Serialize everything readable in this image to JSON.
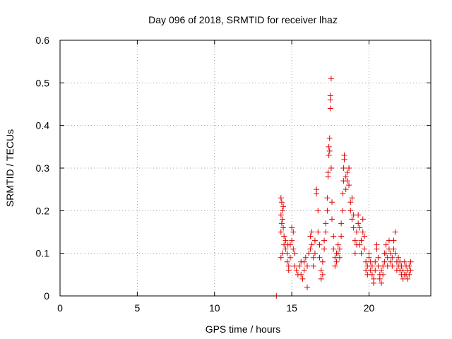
{
  "chart_data": {
    "type": "scatter",
    "title": "Day 096 of 2018, SRMTID for receiver lhaz",
    "xlabel": "GPS time / hours",
    "ylabel": "SRMTID / TECUs",
    "xlim": [
      0,
      24
    ],
    "ylim": [
      0,
      0.6
    ],
    "xticks": [
      0,
      5,
      10,
      15,
      20
    ],
    "yticks": [
      0,
      0.1,
      0.2,
      0.3,
      0.4,
      0.5,
      0.6
    ],
    "ytick_labels": [
      "0",
      "0.1",
      "0.2",
      "0.3",
      "0.4",
      "0.5",
      "0.6"
    ],
    "xtick_labels": [
      "0",
      "5",
      "10",
      "15",
      "20"
    ],
    "grid": true,
    "marker": "plus",
    "color": "#e00000",
    "series": [
      {
        "name": "SRMTID",
        "points": [
          [
            14.0,
            0.0
          ],
          [
            14.3,
            0.23
          ],
          [
            14.35,
            0.22
          ],
          [
            14.4,
            0.2
          ],
          [
            14.45,
            0.21
          ],
          [
            14.3,
            0.19
          ],
          [
            14.35,
            0.17
          ],
          [
            14.4,
            0.18
          ],
          [
            14.3,
            0.15
          ],
          [
            14.45,
            0.16
          ],
          [
            14.5,
            0.14
          ],
          [
            14.5,
            0.12
          ],
          [
            14.4,
            0.1
          ],
          [
            14.3,
            0.09
          ],
          [
            14.6,
            0.11
          ],
          [
            14.7,
            0.1
          ],
          [
            14.7,
            0.08
          ],
          [
            14.8,
            0.07
          ],
          [
            14.8,
            0.06
          ],
          [
            14.9,
            0.09
          ],
          [
            14.9,
            0.12
          ],
          [
            15.0,
            0.13
          ],
          [
            15.0,
            0.16
          ],
          [
            15.1,
            0.15
          ],
          [
            15.1,
            0.11
          ],
          [
            15.2,
            0.1
          ],
          [
            15.2,
            0.07
          ],
          [
            14.6,
            0.13
          ],
          [
            14.75,
            0.12
          ],
          [
            15.3,
            0.06
          ],
          [
            15.4,
            0.05
          ],
          [
            15.5,
            0.07
          ],
          [
            15.6,
            0.08
          ],
          [
            15.6,
            0.05
          ],
          [
            15.7,
            0.04
          ],
          [
            15.8,
            0.06
          ],
          [
            15.8,
            0.08
          ],
          [
            15.9,
            0.09
          ],
          [
            16.0,
            0.02
          ],
          [
            16.0,
            0.07
          ],
          [
            16.1,
            0.1
          ],
          [
            16.2,
            0.11
          ],
          [
            16.2,
            0.14
          ],
          [
            16.3,
            0.15
          ],
          [
            16.3,
            0.12
          ],
          [
            16.4,
            0.09
          ],
          [
            16.4,
            0.07
          ],
          [
            16.5,
            0.1
          ],
          [
            16.5,
            0.13
          ],
          [
            16.6,
            0.25
          ],
          [
            16.6,
            0.24
          ],
          [
            16.7,
            0.2
          ],
          [
            16.7,
            0.15
          ],
          [
            16.8,
            0.12
          ],
          [
            16.8,
            0.09
          ],
          [
            16.9,
            0.06
          ],
          [
            16.9,
            0.04
          ],
          [
            17.0,
            0.05
          ],
          [
            17.0,
            0.08
          ],
          [
            17.1,
            0.11
          ],
          [
            17.1,
            0.13
          ],
          [
            17.2,
            0.15
          ],
          [
            17.2,
            0.17
          ],
          [
            17.3,
            0.2
          ],
          [
            17.3,
            0.23
          ],
          [
            17.35,
            0.28
          ],
          [
            17.35,
            0.29
          ],
          [
            17.4,
            0.33
          ],
          [
            17.4,
            0.35
          ],
          [
            17.45,
            0.37
          ],
          [
            17.45,
            0.34
          ],
          [
            17.5,
            0.44
          ],
          [
            17.5,
            0.46
          ],
          [
            17.5,
            0.47
          ],
          [
            17.55,
            0.51
          ],
          [
            17.55,
            0.3
          ],
          [
            17.6,
            0.22
          ],
          [
            17.6,
            0.18
          ],
          [
            17.7,
            0.14
          ],
          [
            17.7,
            0.11
          ],
          [
            17.8,
            0.09
          ],
          [
            17.8,
            0.07
          ],
          [
            17.9,
            0.08
          ],
          [
            17.9,
            0.1
          ],
          [
            18.0,
            0.12
          ],
          [
            18.0,
            0.1
          ],
          [
            18.1,
            0.09
          ],
          [
            18.1,
            0.11
          ],
          [
            18.2,
            0.14
          ],
          [
            18.2,
            0.17
          ],
          [
            18.3,
            0.2
          ],
          [
            18.3,
            0.24
          ],
          [
            18.35,
            0.27
          ],
          [
            18.35,
            0.3
          ],
          [
            18.4,
            0.33
          ],
          [
            18.4,
            0.32
          ],
          [
            18.5,
            0.28
          ],
          [
            18.5,
            0.25
          ],
          [
            18.6,
            0.27
          ],
          [
            18.6,
            0.29
          ],
          [
            18.7,
            0.3
          ],
          [
            18.7,
            0.26
          ],
          [
            18.8,
            0.22
          ],
          [
            18.8,
            0.2
          ],
          [
            18.9,
            0.18
          ],
          [
            18.9,
            0.23
          ],
          [
            19.0,
            0.19
          ],
          [
            19.0,
            0.16
          ],
          [
            19.1,
            0.13
          ],
          [
            19.1,
            0.1
          ],
          [
            19.2,
            0.12
          ],
          [
            19.2,
            0.15
          ],
          [
            19.3,
            0.17
          ],
          [
            19.3,
            0.19
          ],
          [
            19.4,
            0.16
          ],
          [
            19.4,
            0.12
          ],
          [
            19.5,
            0.1
          ],
          [
            19.5,
            0.13
          ],
          [
            19.6,
            0.15
          ],
          [
            19.6,
            0.18
          ],
          [
            19.7,
            0.14
          ],
          [
            19.7,
            0.11
          ],
          [
            19.8,
            0.08
          ],
          [
            19.8,
            0.06
          ],
          [
            19.9,
            0.05
          ],
          [
            19.9,
            0.07
          ],
          [
            20.0,
            0.09
          ],
          [
            20.0,
            0.1
          ],
          [
            20.1,
            0.08
          ],
          [
            20.1,
            0.06
          ],
          [
            20.2,
            0.05
          ],
          [
            20.2,
            0.07
          ],
          [
            20.3,
            0.04
          ],
          [
            20.3,
            0.03
          ],
          [
            20.4,
            0.06
          ],
          [
            20.4,
            0.08
          ],
          [
            20.5,
            0.12
          ],
          [
            20.5,
            0.11
          ],
          [
            20.6,
            0.09
          ],
          [
            20.6,
            0.07
          ],
          [
            20.7,
            0.05
          ],
          [
            20.7,
            0.04
          ],
          [
            20.8,
            0.06
          ],
          [
            20.8,
            0.03
          ],
          [
            20.9,
            0.07
          ],
          [
            20.9,
            0.05
          ],
          [
            21.0,
            0.08
          ],
          [
            21.0,
            0.1
          ],
          [
            21.1,
            0.12
          ],
          [
            21.1,
            0.1
          ],
          [
            21.2,
            0.09
          ],
          [
            21.2,
            0.07
          ],
          [
            21.3,
            0.11
          ],
          [
            21.3,
            0.13
          ],
          [
            21.4,
            0.1
          ],
          [
            21.4,
            0.08
          ],
          [
            21.5,
            0.07
          ],
          [
            21.5,
            0.09
          ],
          [
            21.6,
            0.11
          ],
          [
            21.6,
            0.13
          ],
          [
            21.7,
            0.15
          ],
          [
            21.7,
            0.1
          ],
          [
            21.8,
            0.08
          ],
          [
            21.8,
            0.06
          ],
          [
            21.9,
            0.07
          ],
          [
            21.9,
            0.09
          ],
          [
            22.0,
            0.08
          ],
          [
            22.0,
            0.06
          ],
          [
            22.1,
            0.05
          ],
          [
            22.1,
            0.07
          ],
          [
            22.2,
            0.06
          ],
          [
            22.2,
            0.04
          ],
          [
            22.3,
            0.05
          ],
          [
            22.3,
            0.08
          ],
          [
            22.4,
            0.07
          ],
          [
            22.4,
            0.05
          ],
          [
            22.5,
            0.06
          ],
          [
            22.5,
            0.04
          ],
          [
            22.6,
            0.07
          ],
          [
            22.6,
            0.05
          ],
          [
            22.7,
            0.06
          ],
          [
            22.7,
            0.08
          ]
        ]
      }
    ]
  }
}
